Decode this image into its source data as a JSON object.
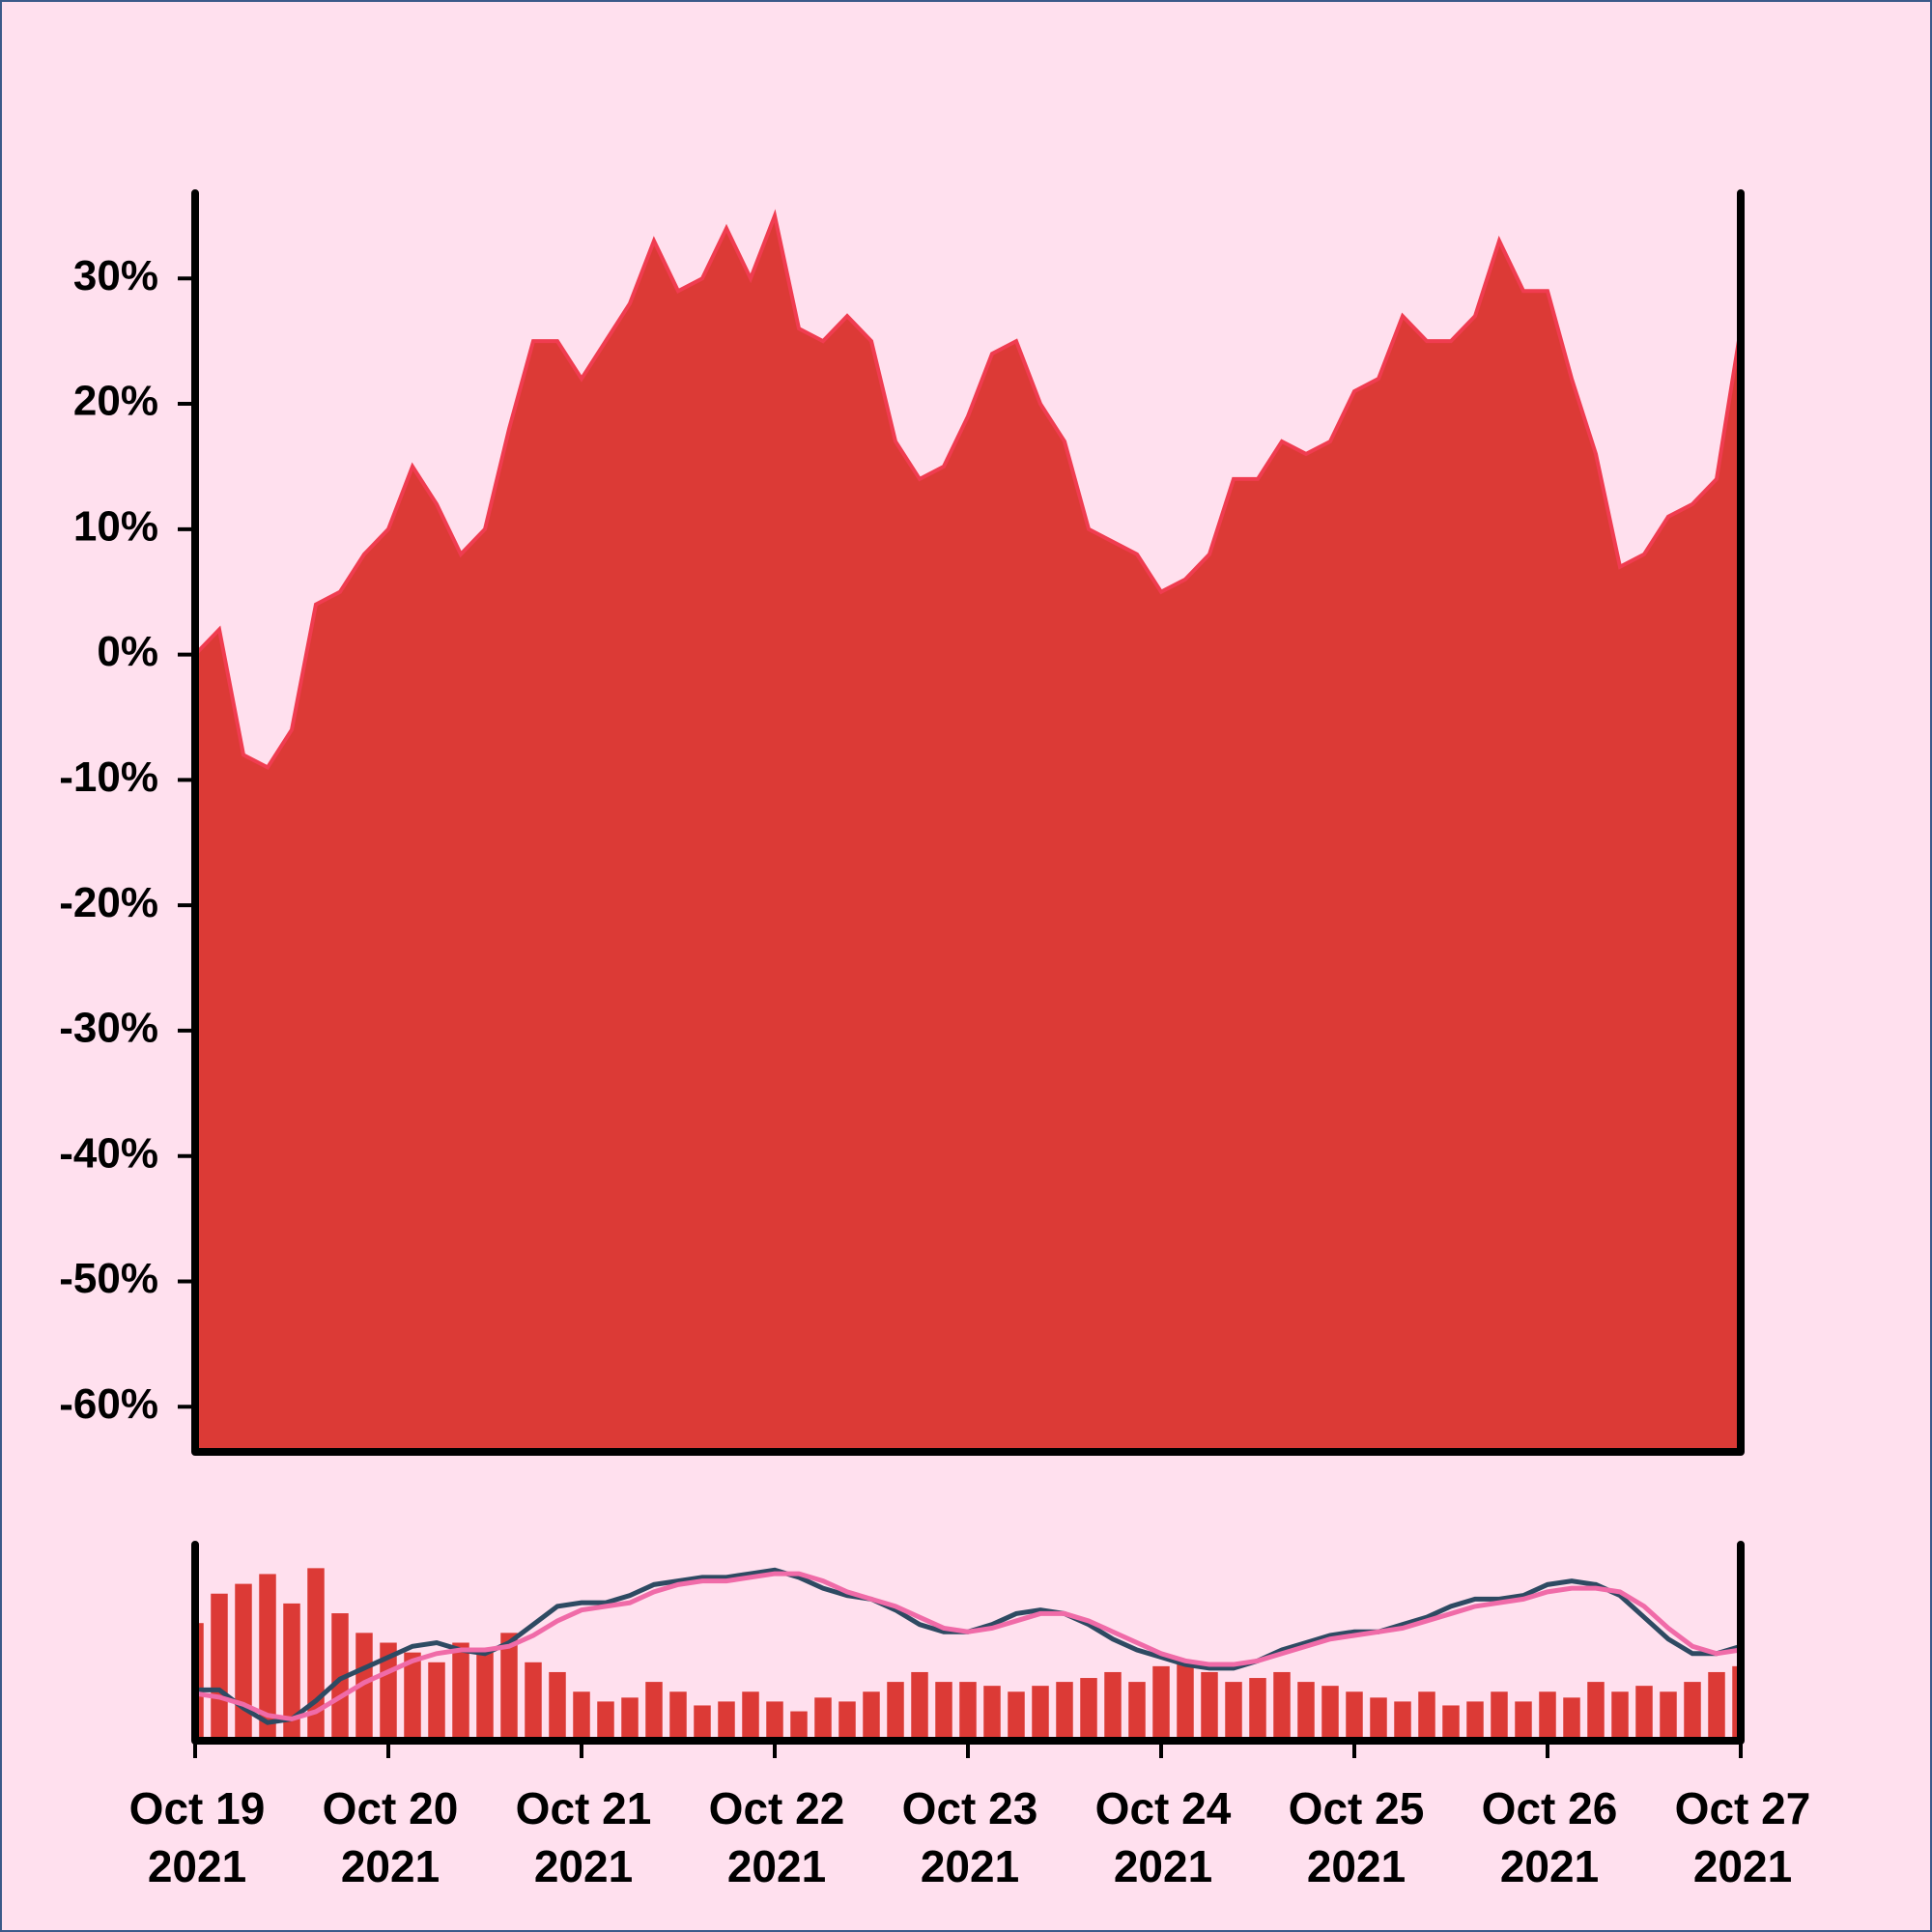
{
  "chart_data": [
    {
      "type": "area",
      "color": "#dc3a36",
      "line_color": "#f03c50",
      "x": [
        0,
        0.125,
        0.25,
        0.375,
        0.5,
        0.625,
        0.75,
        0.875,
        1,
        1.125,
        1.25,
        1.375,
        1.5,
        1.625,
        1.75,
        1.875,
        2,
        2.125,
        2.25,
        2.375,
        2.5,
        2.625,
        2.75,
        2.875,
        3,
        3.125,
        3.25,
        3.375,
        3.5,
        3.625,
        3.75,
        3.875,
        4,
        4.125,
        4.25,
        4.375,
        4.5,
        4.625,
        4.75,
        4.875,
        5,
        5.125,
        5.25,
        5.375,
        5.5,
        5.625,
        5.75,
        5.875,
        6,
        6.125,
        6.25,
        6.375,
        6.5,
        6.625,
        6.75,
        6.875,
        7,
        7.125,
        7.25,
        7.375,
        7.5,
        7.625,
        7.75,
        7.875,
        8
      ],
      "values": [
        0,
        2,
        -8,
        -9,
        -6,
        4,
        5,
        8,
        10,
        15,
        12,
        8,
        10,
        18,
        25,
        25,
        22,
        25,
        28,
        33,
        29,
        30,
        34,
        30,
        35,
        26,
        25,
        27,
        25,
        17,
        14,
        15,
        19,
        24,
        25,
        20,
        17,
        10,
        9,
        8,
        5,
        6,
        8,
        14,
        14,
        17,
        16,
        17,
        21,
        22,
        27,
        25,
        25,
        27,
        33,
        29,
        29,
        22,
        16,
        7,
        8,
        11,
        12,
        14,
        26
      ],
      "xlim": [
        0,
        8
      ],
      "ylim": [
        -63.6,
        36.8
      ],
      "yticks": [
        {
          "value": -60,
          "label": "-60%"
        },
        {
          "value": -50,
          "label": "-50%"
        },
        {
          "value": -40,
          "label": "-40%"
        },
        {
          "value": -30,
          "label": "-30%"
        },
        {
          "value": -20,
          "label": "-20%"
        },
        {
          "value": -10,
          "label": "-10%"
        },
        {
          "value": 0,
          "label": "0%"
        },
        {
          "value": 10,
          "label": "10%"
        },
        {
          "value": 20,
          "label": "20%"
        },
        {
          "value": 30,
          "label": "30%"
        }
      ]
    },
    {
      "type": "bar",
      "color": "#dc3a36",
      "x": [
        0,
        0.125,
        0.25,
        0.375,
        0.5,
        0.625,
        0.75,
        0.875,
        1,
        1.125,
        1.25,
        1.375,
        1.5,
        1.625,
        1.75,
        1.875,
        2,
        2.125,
        2.25,
        2.375,
        2.5,
        2.625,
        2.75,
        2.875,
        3,
        3.125,
        3.25,
        3.375,
        3.5,
        3.625,
        3.75,
        3.875,
        4,
        4.125,
        4.25,
        4.375,
        4.5,
        4.625,
        4.75,
        4.875,
        5,
        5.125,
        5.25,
        5.375,
        5.5,
        5.625,
        5.75,
        5.875,
        6,
        6.125,
        6.25,
        6.375,
        6.5,
        6.625,
        6.75,
        6.875,
        7,
        7.125,
        7.25,
        7.375,
        7.5,
        7.625,
        7.75,
        7.875,
        8
      ],
      "values": [
        60,
        75,
        80,
        85,
        70,
        88,
        65,
        55,
        50,
        45,
        40,
        50,
        45,
        55,
        40,
        35,
        25,
        20,
        22,
        30,
        25,
        18,
        20,
        25,
        20,
        15,
        22,
        20,
        25,
        30,
        35,
        30,
        30,
        28,
        25,
        28,
        30,
        32,
        35,
        30,
        38,
        40,
        35,
        30,
        32,
        35,
        30,
        28,
        25,
        22,
        20,
        25,
        18,
        20,
        25,
        20,
        25,
        22,
        30,
        25,
        28,
        25,
        30,
        35,
        38
      ],
      "xlim": [
        0,
        8
      ],
      "ylim": [
        0,
        100
      ],
      "y2lim": [
        -14,
        40
      ],
      "lines": [
        {
          "color": "#2e4a62",
          "axis": "y2",
          "values": [
            0,
            0,
            -5,
            -9,
            -8,
            -3,
            3,
            6,
            9,
            12,
            13,
            11,
            10,
            13,
            18,
            23,
            24,
            24,
            26,
            29,
            30,
            31,
            31,
            32,
            33,
            31,
            28,
            26,
            25,
            22,
            18,
            16,
            16,
            18,
            21,
            22,
            21,
            18,
            14,
            11,
            9,
            7,
            6,
            6,
            8,
            11,
            13,
            15,
            16,
            16,
            18,
            20,
            23,
            25,
            25,
            26,
            29,
            30,
            29,
            26,
            20,
            14,
            10,
            10,
            12
          ]
        },
        {
          "color": "#f06ba8",
          "axis": "y2",
          "values": [
            -1,
            -2,
            -4,
            -7,
            -8,
            -6,
            -2,
            2,
            5,
            8,
            10,
            11,
            11,
            12,
            15,
            19,
            22,
            23,
            24,
            27,
            29,
            30,
            30,
            31,
            32,
            32,
            30,
            27,
            25,
            23,
            20,
            17,
            16,
            17,
            19,
            21,
            21,
            19,
            16,
            13,
            10,
            8,
            7,
            7,
            8,
            10,
            12,
            14,
            15,
            16,
            17,
            19,
            21,
            23,
            24,
            25,
            27,
            28,
            28,
            27,
            23,
            17,
            12,
            10,
            11
          ]
        }
      ],
      "xticks": [
        {
          "value": 0,
          "label": "Oct 19\n2021"
        },
        {
          "value": 1,
          "label": "Oct 20\n2021"
        },
        {
          "value": 2,
          "label": "Oct 21\n2021"
        },
        {
          "value": 3,
          "label": "Oct 22\n2021"
        },
        {
          "value": 4,
          "label": "Oct 23\n2021"
        },
        {
          "value": 5,
          "label": "Oct 24\n2021"
        },
        {
          "value": 6,
          "label": "Oct 25\n2021"
        },
        {
          "value": 7,
          "label": "Oct 26\n2021"
        },
        {
          "value": 8,
          "label": "Oct 27\n2021"
        }
      ]
    }
  ]
}
